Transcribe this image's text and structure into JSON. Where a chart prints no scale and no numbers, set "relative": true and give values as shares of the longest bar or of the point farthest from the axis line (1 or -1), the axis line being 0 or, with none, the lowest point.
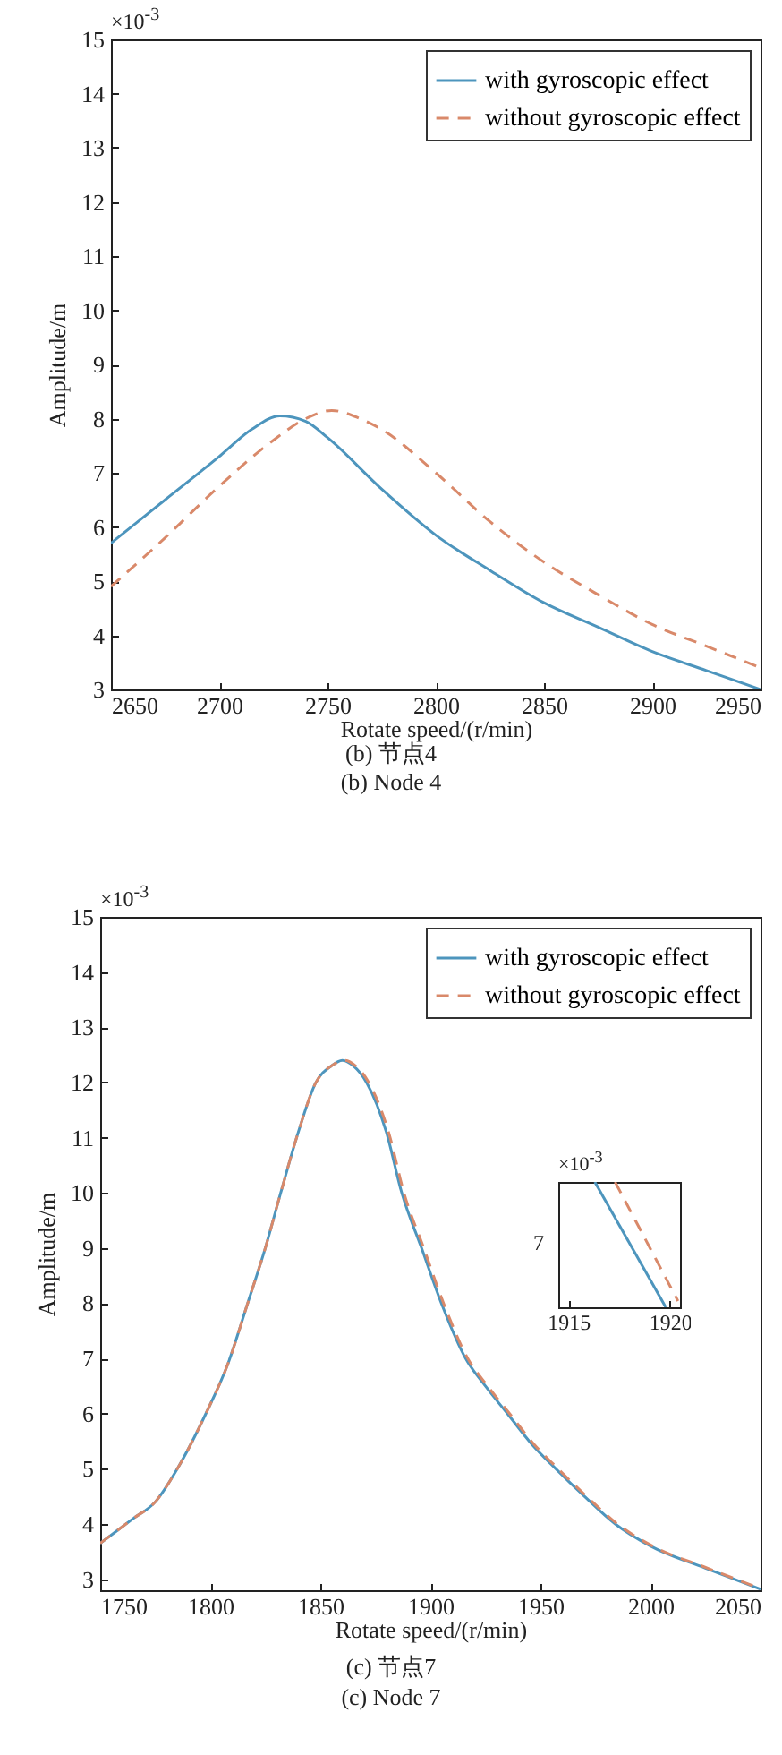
{
  "chart_data": [
    {
      "type": "line",
      "xlabel": "Rotate speed/(r/min)",
      "ylabel": "Amplitude/m",
      "xlim": [
        2650,
        2950
      ],
      "ylim": [
        3,
        15
      ],
      "xticks": [
        2650,
        2700,
        2750,
        2800,
        2850,
        2900,
        2950
      ],
      "yticks": [
        3,
        4,
        5,
        6,
        7,
        8,
        9,
        10,
        11,
        12,
        13,
        14,
        15
      ],
      "grid": false,
      "legend": "top right",
      "annotations": [
        "×10$^{-3}$",
        "(b) 节点4",
        "(b) Node 4"
      ],
      "series": [
        {
          "name": "with gyroscopic effect",
          "color": "#4d95bd",
          "line_style": "solid",
          "x": [
            2650,
            2675,
            2700,
            2715,
            2728,
            2740,
            2750,
            2775,
            2800,
            2825,
            2850,
            2875,
            2900,
            2925,
            2950
          ],
          "values": [
            5.7,
            6.5,
            7.3,
            7.8,
            8.05,
            7.95,
            7.65,
            6.7,
            5.85,
            5.2,
            4.6,
            4.15,
            3.7,
            3.35,
            3.0
          ]
        },
        {
          "name": "without gyroscopic effect",
          "color": "#d9896a",
          "line_style": "dashed",
          "x": [
            2650,
            2675,
            2700,
            2725,
            2740,
            2752,
            2765,
            2775,
            2800,
            2825,
            2850,
            2875,
            2900,
            2925,
            2950
          ],
          "values": [
            4.9,
            5.8,
            6.75,
            7.6,
            8.0,
            8.15,
            8.0,
            7.8,
            7.0,
            6.1,
            5.35,
            4.75,
            4.2,
            3.8,
            3.4
          ]
        }
      ]
    },
    {
      "type": "line",
      "xlabel": "Rotate speed/(r/min)",
      "ylabel": "Amplitude/m",
      "xlim": [
        1750,
        2050
      ],
      "ylim": [
        2.8,
        15
      ],
      "xticks": [
        1750,
        1800,
        1850,
        1900,
        1950,
        2000,
        2050
      ],
      "yticks": [
        3,
        4,
        5,
        6,
        7,
        8,
        9,
        10,
        11,
        12,
        13,
        14,
        15
      ],
      "grid": false,
      "legend": "top right",
      "annotations": [
        "×10$^{-3}$",
        "(c) 节点7",
        "(c) Node 7"
      ],
      "series": [
        {
          "name": "with gyroscopic effect",
          "color": "#4d95bd",
          "line_style": "solid",
          "x": [
            1750,
            1765,
            1775,
            1785,
            1798,
            1808,
            1817,
            1825,
            1832,
            1840,
            1848,
            1855,
            1860,
            1865,
            1871,
            1880,
            1887,
            1896,
            1905,
            1916,
            1925,
            1935,
            1946,
            1957,
            1970,
            1984,
            2000,
            2025,
            2050
          ],
          "values": [
            3.65,
            4.1,
            4.4,
            5.0,
            6.0,
            6.9,
            8.0,
            9.0,
            10.0,
            11.1,
            12.0,
            12.3,
            12.4,
            12.3,
            12.0,
            11.1,
            10.0,
            9.0,
            8.0,
            7.0,
            6.5,
            6.0,
            5.45,
            5.0,
            4.5,
            4.0,
            3.6,
            3.2,
            2.82
          ]
        },
        {
          "name": "without gyroscopic effect",
          "color": "#d9896a",
          "line_style": "dashed",
          "x": [
            1750,
            1765,
            1775,
            1785,
            1798,
            1808,
            1817,
            1825,
            1832,
            1840,
            1848,
            1855,
            1861,
            1866,
            1872,
            1881,
            1888,
            1897,
            1906,
            1917,
            1926,
            1936,
            1947,
            1958,
            1971,
            1985,
            2001,
            2026,
            2050
          ],
          "values": [
            3.65,
            4.1,
            4.4,
            5.0,
            6.0,
            6.9,
            8.0,
            9.0,
            10.0,
            11.1,
            12.0,
            12.3,
            12.4,
            12.3,
            12.0,
            11.1,
            10.0,
            9.0,
            8.0,
            7.0,
            6.5,
            6.0,
            5.45,
            5.0,
            4.5,
            4.0,
            3.6,
            3.2,
            2.83
          ]
        }
      ]
    },
    {
      "type": "line",
      "relative": true,
      "xlim": [
        1914.5,
        1920.5
      ],
      "xticks": [
        1915,
        1920
      ],
      "grid": false,
      "annotations": [
        "×10$^{-3}$",
        "7"
      ],
      "series": [
        {
          "color": "#4d95bd",
          "line_style": "solid",
          "x": [
            1916.3,
            1919.8
          ],
          "values": [
            1,
            0
          ]
        },
        {
          "color": "#d9896a",
          "line_style": "dashed",
          "x": [
            1917.3,
            1920.4
          ],
          "values": [
            1,
            0.05
          ]
        }
      ]
    }
  ]
}
